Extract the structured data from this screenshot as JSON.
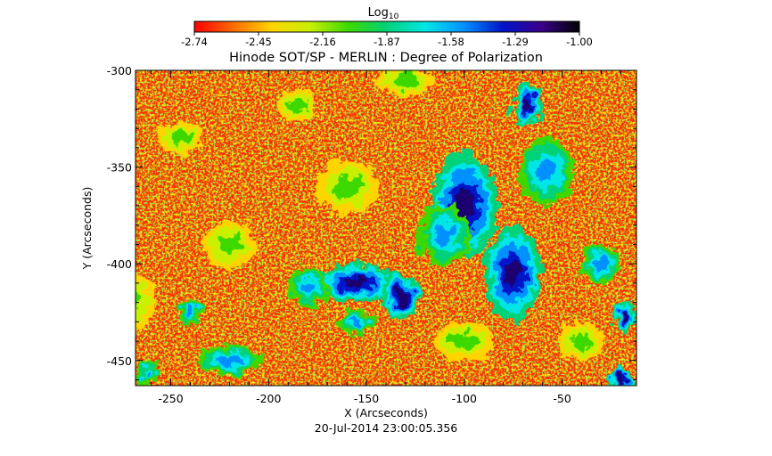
{
  "colorbar": {
    "label_main": "Log",
    "label_sub": "10",
    "ticks": [
      "-2.74",
      "-2.45",
      "-2.16",
      "-1.87",
      "-1.58",
      "-1.29",
      "-1.00"
    ],
    "colors": [
      "#ff0000",
      "#ff6a00",
      "#ffd400",
      "#c8f000",
      "#3cd800",
      "#00d27a",
      "#00e6e6",
      "#0090ff",
      "#0014c8",
      "#3a008c",
      "#000000"
    ]
  },
  "chart_data": {
    "type": "heatmap",
    "title": "Hinode SOT/SP - MERLIN : Degree of Polarization",
    "xlabel": "X (Arcseconds)",
    "ylabel": "Y (Arcseconds)",
    "xlim": [
      -268,
      -12
    ],
    "ylim": [
      -463,
      -300
    ],
    "x_ticks": [
      -250,
      -200,
      -150,
      -100,
      -50
    ],
    "x_tick_labels": [
      "-250",
      "-200",
      "-150",
      "-100",
      "-50"
    ],
    "y_ticks": [
      -300,
      -350,
      -400,
      -450
    ],
    "y_tick_labels": [
      "-300",
      "-350",
      "-400",
      "-450"
    ],
    "timestamp": "20-Jul-2014 23:00:05.356",
    "value_range": [
      -2.74,
      -1.0
    ],
    "background_color": "#ff2a00",
    "patches": [
      {
        "x": -100,
        "y": -370,
        "rx": 17,
        "ry": 28,
        "level": "strong"
      },
      {
        "x": -110,
        "y": -385,
        "rx": 14,
        "ry": 16,
        "level": "medium"
      },
      {
        "x": -155,
        "y": -410,
        "rx": 20,
        "ry": 10,
        "level": "strong"
      },
      {
        "x": -132,
        "y": -417,
        "rx": 10,
        "ry": 12,
        "level": "strong"
      },
      {
        "x": -180,
        "y": -412,
        "rx": 10,
        "ry": 10,
        "level": "medium"
      },
      {
        "x": -75,
        "y": -405,
        "rx": 15,
        "ry": 24,
        "level": "strong"
      },
      {
        "x": -58,
        "y": -352,
        "rx": 14,
        "ry": 18,
        "level": "medium"
      },
      {
        "x": -68,
        "y": -318,
        "rx": 8,
        "ry": 12,
        "level": "strong"
      },
      {
        "x": -220,
        "y": -450,
        "rx": 16,
        "ry": 8,
        "level": "medium"
      },
      {
        "x": -30,
        "y": -400,
        "rx": 10,
        "ry": 10,
        "level": "medium"
      },
      {
        "x": -18,
        "y": -428,
        "rx": 6,
        "ry": 8,
        "level": "strong"
      },
      {
        "x": -20,
        "y": -460,
        "rx": 6,
        "ry": 6,
        "level": "strong"
      },
      {
        "x": -262,
        "y": -456,
        "rx": 6,
        "ry": 6,
        "level": "medium"
      },
      {
        "x": -185,
        "y": -318,
        "rx": 10,
        "ry": 8,
        "level": "weak"
      },
      {
        "x": -245,
        "y": -335,
        "rx": 12,
        "ry": 8,
        "level": "weak"
      },
      {
        "x": -160,
        "y": -360,
        "rx": 16,
        "ry": 14,
        "level": "weak"
      },
      {
        "x": -220,
        "y": -390,
        "rx": 14,
        "ry": 12,
        "level": "weak"
      },
      {
        "x": -100,
        "y": -440,
        "rx": 16,
        "ry": 10,
        "level": "weak"
      },
      {
        "x": -40,
        "y": -440,
        "rx": 12,
        "ry": 10,
        "level": "weak"
      },
      {
        "x": -270,
        "y": -420,
        "rx": 12,
        "ry": 16,
        "level": "weak"
      },
      {
        "x": -130,
        "y": -305,
        "rx": 14,
        "ry": 8,
        "level": "weak"
      },
      {
        "x": -240,
        "y": -425,
        "rx": 6,
        "ry": 6,
        "level": "medium"
      },
      {
        "x": -155,
        "y": -430,
        "rx": 10,
        "ry": 6,
        "level": "medium"
      }
    ]
  }
}
